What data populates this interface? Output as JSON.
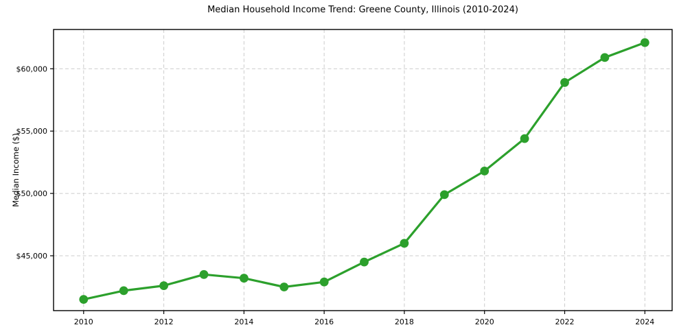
{
  "chart_data": {
    "type": "line",
    "title": "Median Household Income Trend: Greene County, Illinois (2010-2024)",
    "xlabel": "",
    "ylabel": "Median Income ($)",
    "series_name": "Median Household Income",
    "x": [
      2010,
      2011,
      2012,
      2013,
      2014,
      2015,
      2016,
      2017,
      2018,
      2019,
      2020,
      2021,
      2022,
      2023,
      2024
    ],
    "values": [
      41500,
      42200,
      42600,
      43500,
      43200,
      42500,
      42900,
      44500,
      46000,
      49900,
      51800,
      54400,
      58900,
      60900,
      62100
    ],
    "xlim": [
      2009.25,
      2024.68
    ],
    "ylim": [
      40600,
      63150
    ],
    "x_ticks": [
      2010,
      2012,
      2014,
      2016,
      2018,
      2020,
      2022,
      2024
    ],
    "x_tick_labels": [
      "2010",
      "2012",
      "2014",
      "2016",
      "2018",
      "2020",
      "2022",
      "2024"
    ],
    "y_ticks": [
      45000,
      50000,
      55000,
      60000
    ],
    "y_tick_labels": [
      "$45,000",
      "$50,000",
      "$55,000",
      "$60,000"
    ],
    "grid": true,
    "grid_style": "dashed",
    "legend": "none",
    "line_color": "#2ca02c",
    "marker": "circle",
    "grid_color": "#cccccc",
    "spine_color": "#000000",
    "text_color": "#000000",
    "background": "#ffffff"
  }
}
